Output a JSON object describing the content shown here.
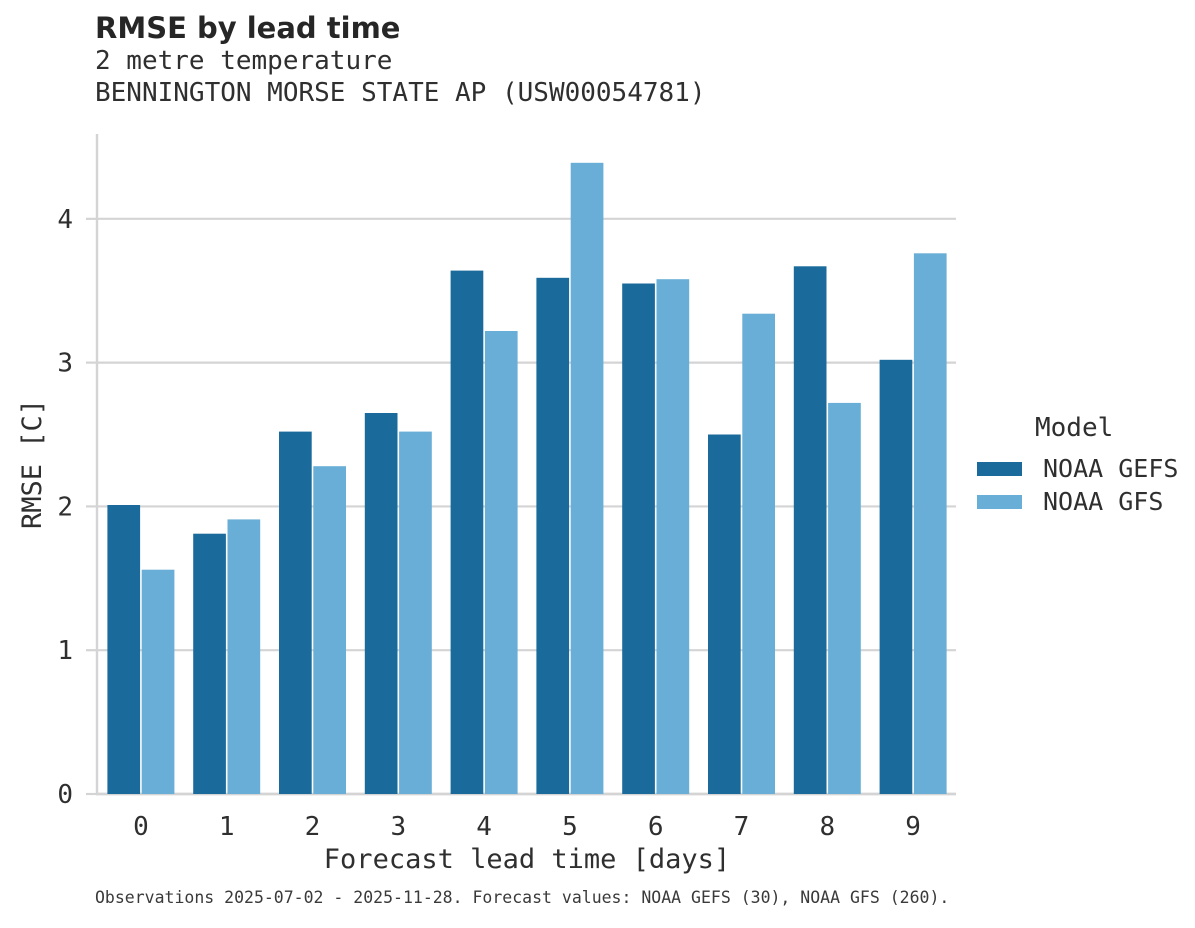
{
  "chart_data": {
    "type": "bar",
    "title": "RMSE by lead time",
    "subtitle1": "2 metre temperature",
    "subtitle2": "BENNINGTON MORSE STATE AP (USW00054781)",
    "categories": [
      "0",
      "1",
      "2",
      "3",
      "4",
      "5",
      "6",
      "7",
      "8",
      "9"
    ],
    "series": [
      {
        "name": "NOAA GEFS",
        "color": "#1a6b9b",
        "values": [
          2.01,
          1.81,
          2.52,
          2.65,
          3.64,
          3.59,
          3.55,
          2.5,
          3.67,
          3.02
        ]
      },
      {
        "name": "NOAA GFS",
        "color": "#69aed6",
        "values": [
          1.56,
          1.91,
          2.28,
          2.52,
          3.22,
          4.39,
          3.58,
          3.34,
          2.72,
          3.76
        ]
      }
    ],
    "xlabel": "Forecast lead time [days]",
    "ylabel": "RMSE [C]",
    "yticks": [
      0,
      1,
      2,
      3,
      4
    ],
    "ylim": [
      0,
      4.59
    ],
    "grid": true,
    "legend_title": "Model",
    "legend_position": "right"
  },
  "footer": {
    "text": "Observations 2025-07-02 - 2025-11-28. Forecast values: NOAA GEFS (30), NOAA GFS (260)."
  },
  "colors": {
    "grid": "#d4d4d4",
    "axis": "#d4d4d4",
    "title_text": "#262626",
    "body_text": "#2f2f2f",
    "footer_text": "#3a3a3a"
  }
}
